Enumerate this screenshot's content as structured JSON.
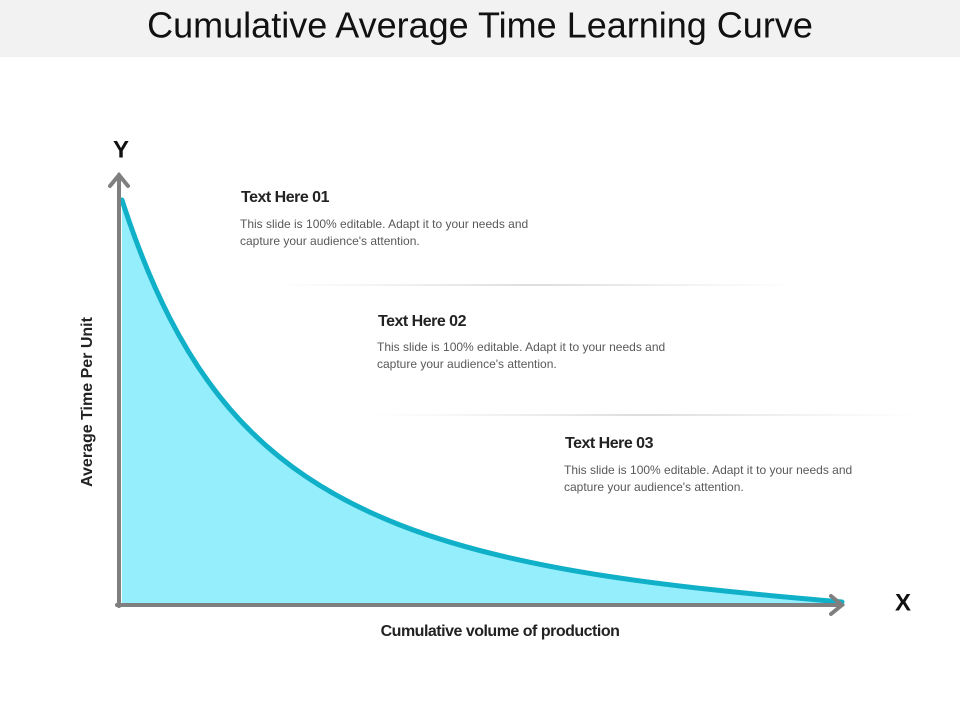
{
  "title": "Cumulative Average Time Learning Curve",
  "axes": {
    "y": "Y",
    "x": "X",
    "y_label": "Average Time Per Unit",
    "x_label": "Cumulative volume of production"
  },
  "items": [
    {
      "heading": "Text Here 01",
      "lines": [
        "This slide is 100% editable. Adapt it to your needs and",
        "capture your audience's attention."
      ]
    },
    {
      "heading": "Text Here 02",
      "lines": [
        "This slide is 100% editable. Adapt it to your needs and",
        "capture your audience's attention."
      ]
    },
    {
      "heading": "Text Here 03",
      "lines": [
        "This slide is 100% editable. Adapt it to your needs and",
        "capture your audience's attention."
      ]
    }
  ]
}
